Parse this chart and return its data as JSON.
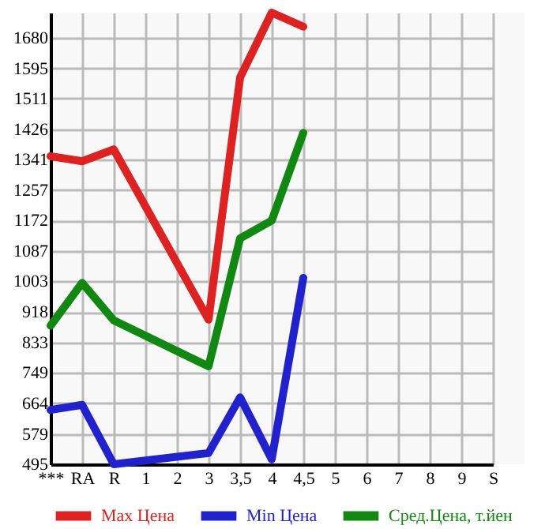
{
  "chart_data": {
    "type": "line",
    "categories": [
      "***",
      "RA",
      "R",
      "1",
      "2",
      "3",
      "3,5",
      "4",
      "4,5",
      "5",
      "6",
      "7",
      "8",
      "9",
      "S"
    ],
    "series": [
      {
        "name": "Max Цена",
        "color": "#dd2222",
        "values": [
          1351,
          1337,
          1370,
          null,
          null,
          897,
          1570,
          1750,
          1711,
          null,
          null,
          null,
          null,
          null,
          null
        ]
      },
      {
        "name": "Min Цена",
        "color": "#2222cc",
        "values": [
          646,
          660,
          495,
          null,
          null,
          526,
          681,
          509,
          1013,
          null,
          null,
          null,
          null,
          null,
          null
        ]
      },
      {
        "name": "Сред.Цена, т.йен",
        "color": "#118811",
        "values": [
          880,
          999,
          895,
          null,
          null,
          767,
          1123,
          1172,
          1416,
          null,
          null,
          null,
          null,
          null,
          null
        ]
      }
    ],
    "ylim": [
      495,
      1750
    ],
    "yticks": [
      495,
      579,
      664,
      749,
      833,
      918,
      1003,
      1087,
      1172,
      1257,
      1341,
      1426,
      1511,
      1595,
      1680
    ],
    "grid": true,
    "legend": "bottom",
    "marker": "none",
    "line_style": "solid"
  }
}
